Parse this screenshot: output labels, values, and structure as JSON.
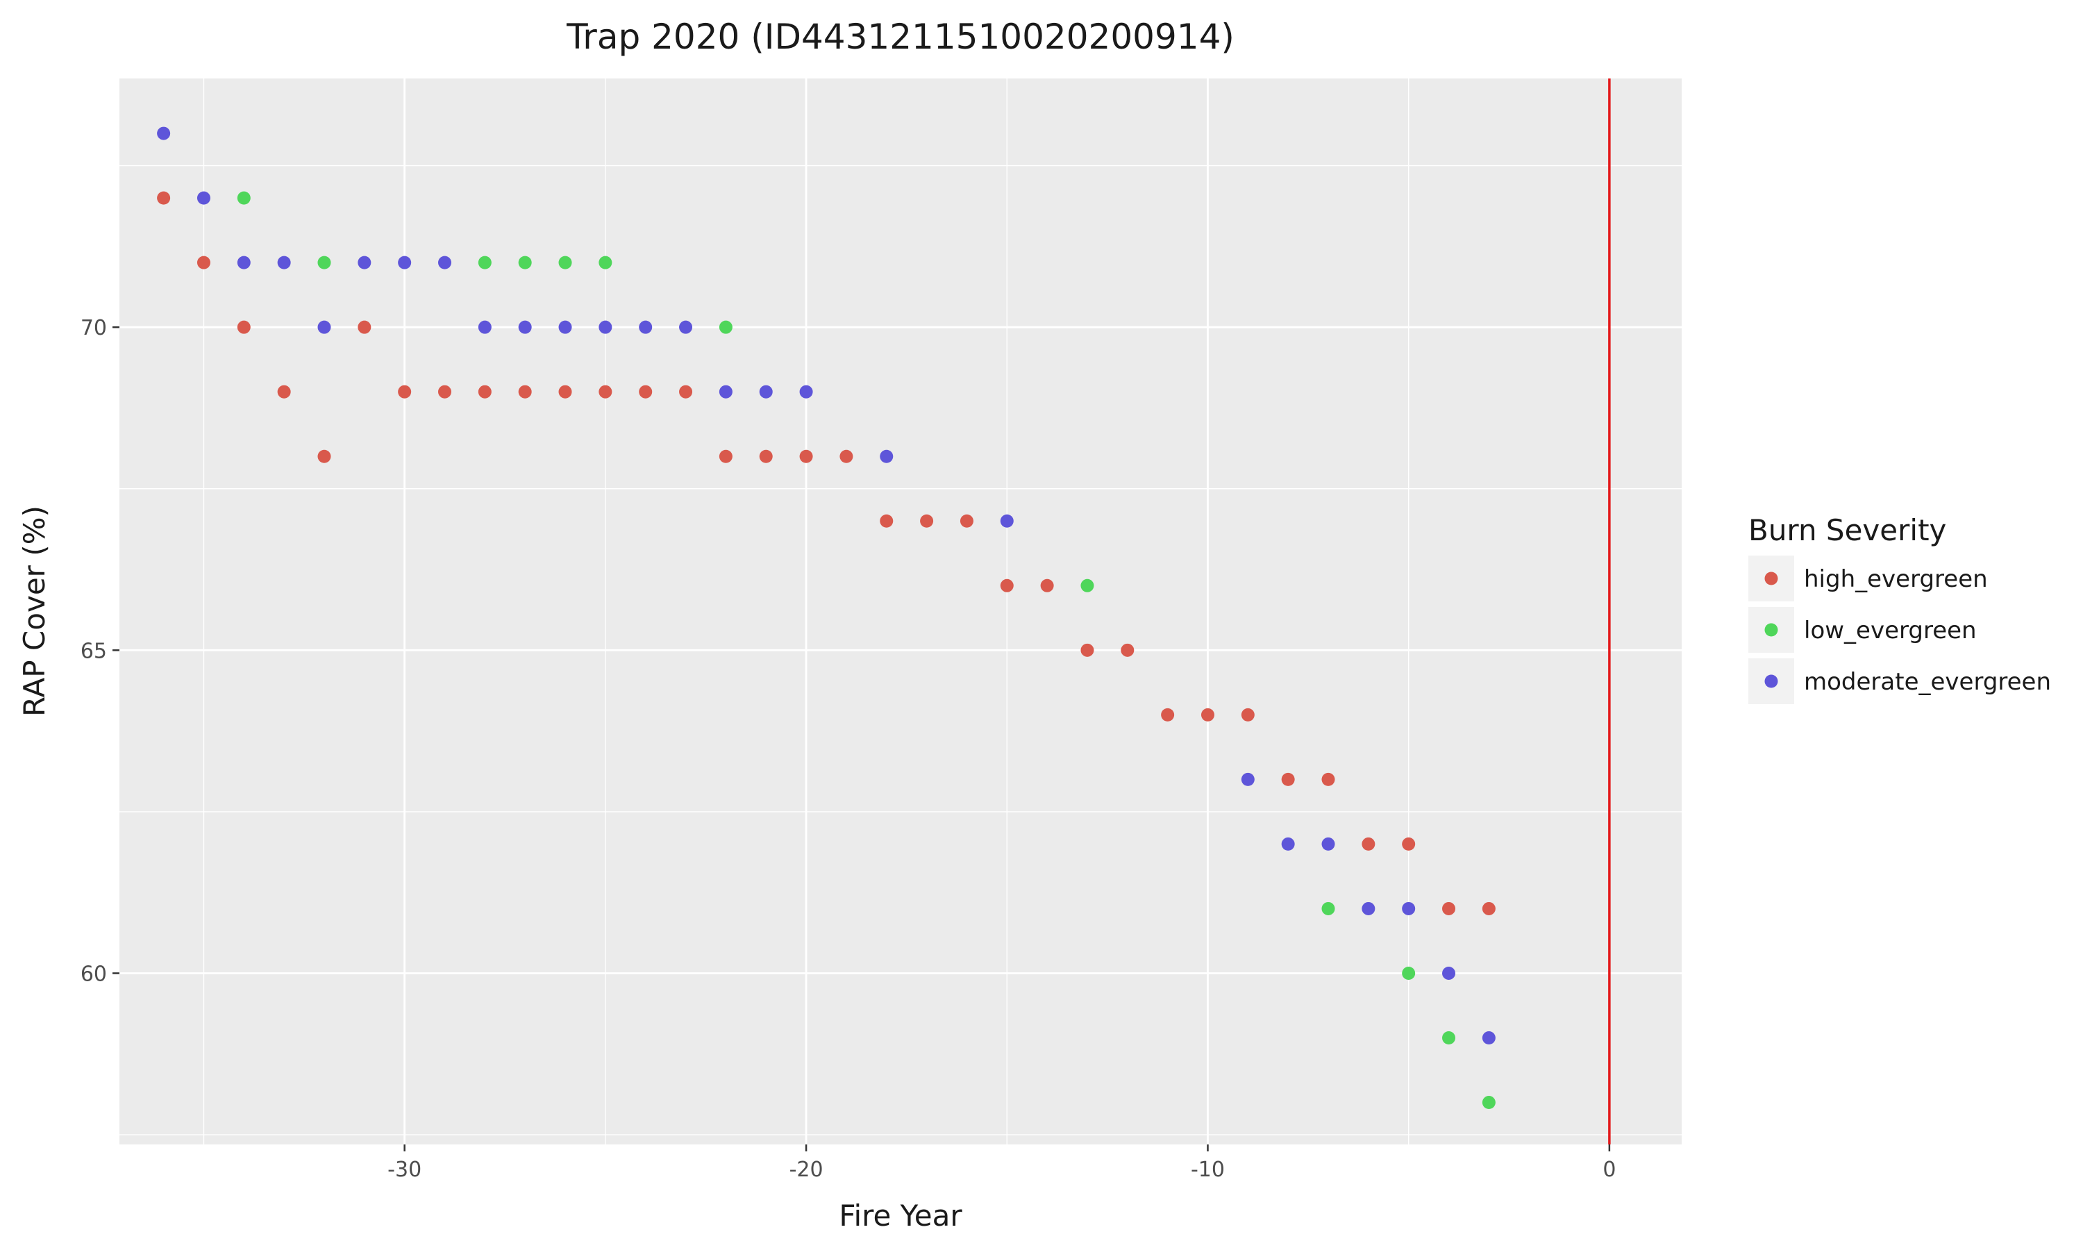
{
  "chart_data": {
    "type": "scatter",
    "title": "Trap 2020 (ID4431211510020200914)",
    "xlabel": "Fire Year",
    "ylabel": "RAP Cover (%)",
    "xlim": [
      -37.1,
      1.8
    ],
    "ylim": [
      57.35,
      73.85
    ],
    "x_ticks": [
      -30,
      -20,
      -10,
      0
    ],
    "y_ticks": [
      60,
      65,
      70
    ],
    "grid": true,
    "reference_line": {
      "x": 0,
      "color": "#e31a1c"
    },
    "legend": {
      "title": "Burn Severity",
      "placement": "right"
    },
    "series": [
      {
        "name": "high_evergreen",
        "color": "#d9594c",
        "points": [
          [
            -36,
            72
          ],
          [
            -35,
            71
          ],
          [
            -34,
            70
          ],
          [
            -33,
            69
          ],
          [
            -32,
            68
          ],
          [
            -31,
            70
          ],
          [
            -30,
            69
          ],
          [
            -29,
            69
          ],
          [
            -28,
            69
          ],
          [
            -27,
            69
          ],
          [
            -26,
            69
          ],
          [
            -25,
            69
          ],
          [
            -24,
            69
          ],
          [
            -23,
            69
          ],
          [
            -22,
            68
          ],
          [
            -21,
            68
          ],
          [
            -20,
            68
          ],
          [
            -19,
            68
          ],
          [
            -18,
            67
          ],
          [
            -17,
            67
          ],
          [
            -16,
            67
          ],
          [
            -15,
            66
          ],
          [
            -14,
            66
          ],
          [
            -13,
            65
          ],
          [
            -12,
            65
          ],
          [
            -11,
            64
          ],
          [
            -10,
            64
          ],
          [
            -9,
            64
          ],
          [
            -8,
            63
          ],
          [
            -7,
            63
          ],
          [
            -6,
            62
          ],
          [
            -5,
            62
          ],
          [
            -4,
            61
          ],
          [
            -3,
            61
          ]
        ]
      },
      {
        "name": "low_evergreen",
        "color": "#4fd65a",
        "points": [
          [
            -34,
            72
          ],
          [
            -32,
            71
          ],
          [
            -28,
            71
          ],
          [
            -27,
            71
          ],
          [
            -26,
            71
          ],
          [
            -25,
            71
          ],
          [
            -22,
            70
          ],
          [
            -13,
            66
          ],
          [
            -7,
            61
          ],
          [
            -5,
            60
          ],
          [
            -4,
            59
          ],
          [
            -3,
            58
          ]
        ]
      },
      {
        "name": "moderate_evergreen",
        "color": "#5e55d9",
        "points": [
          [
            -36,
            73
          ],
          [
            -35,
            72
          ],
          [
            -34,
            71
          ],
          [
            -33,
            71
          ],
          [
            -32,
            70
          ],
          [
            -31,
            71
          ],
          [
            -30,
            71
          ],
          [
            -29,
            71
          ],
          [
            -28,
            70
          ],
          [
            -27,
            70
          ],
          [
            -26,
            70
          ],
          [
            -25,
            70
          ],
          [
            -24,
            70
          ],
          [
            -23,
            70
          ],
          [
            -22,
            69
          ],
          [
            -21,
            69
          ],
          [
            -20,
            69
          ],
          [
            -18,
            68
          ],
          [
            -15,
            67
          ],
          [
            -9,
            63
          ],
          [
            -8,
            62
          ],
          [
            -7,
            62
          ],
          [
            -6,
            61
          ],
          [
            -5,
            61
          ],
          [
            -4,
            60
          ],
          [
            -3,
            59
          ]
        ]
      }
    ]
  }
}
